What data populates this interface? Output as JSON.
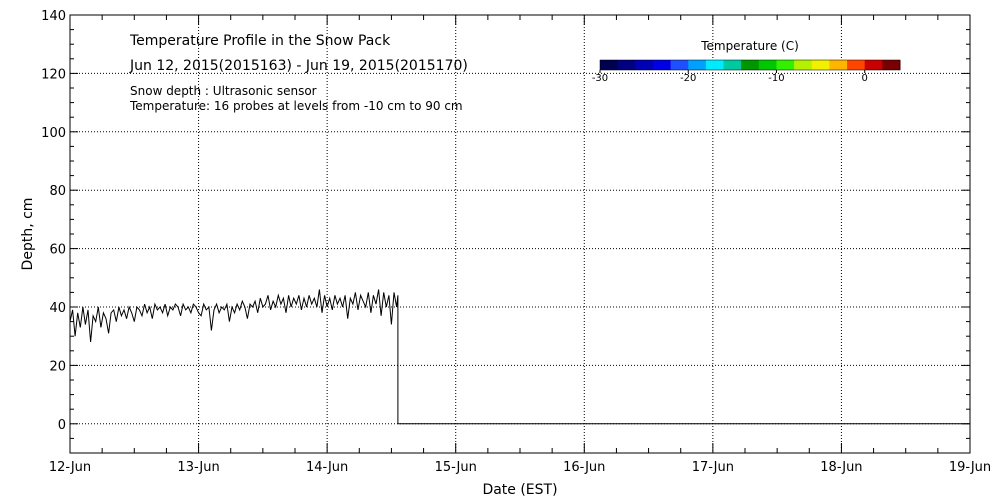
{
  "chart_data": {
    "type": "line",
    "title": "Temperature Profile in the Snow Pack",
    "subtitle": "Jun 12, 2015(2015163) - Jun 19, 2015(2015170)",
    "annotations": [
      "Snow depth : Ultrasonic sensor",
      "Temperature: 16 probes at levels from -10 cm to 90 cm"
    ],
    "xlabel": "Date (EST)",
    "ylabel": "Depth, cm",
    "x_ticks": [
      "12-Jun",
      "13-Jun",
      "14-Jun",
      "15-Jun",
      "16-Jun",
      "17-Jun",
      "18-Jun",
      "19-Jun"
    ],
    "xlim": [
      0,
      7
    ],
    "ylim": [
      -10,
      140
    ],
    "y_ticks": [
      0,
      20,
      40,
      60,
      80,
      100,
      120,
      140
    ],
    "y_tick_labels": [
      "0",
      "20",
      "40",
      "60",
      "80",
      "100",
      "120",
      "140"
    ],
    "grid": true,
    "colorbar": {
      "title": "Temperature (C)",
      "range": [
        -30,
        4
      ],
      "tick_values": [
        -30,
        -20,
        -10,
        0
      ],
      "tick_labels": [
        "-30",
        "-20",
        "-10",
        "0"
      ],
      "colors": [
        "#000050",
        "#000080",
        "#0000b4",
        "#0000e6",
        "#1e50ff",
        "#00a0ff",
        "#00ebff",
        "#00c8a0",
        "#009600",
        "#00c800",
        "#32f000",
        "#b4f000",
        "#f0f000",
        "#ffb400",
        "#ff4600",
        "#c80000",
        "#780000"
      ]
    },
    "series": [
      {
        "values": [
          [
            0.0,
            35
          ],
          [
            0.02,
            39
          ],
          [
            0.04,
            30
          ],
          [
            0.06,
            38
          ],
          [
            0.08,
            33
          ],
          [
            0.1,
            40
          ],
          [
            0.12,
            34
          ],
          [
            0.14,
            39
          ],
          [
            0.16,
            28
          ],
          [
            0.18,
            37
          ],
          [
            0.2,
            35
          ],
          [
            0.22,
            40
          ],
          [
            0.24,
            33
          ],
          [
            0.26,
            38
          ],
          [
            0.28,
            36
          ],
          [
            0.3,
            31
          ],
          [
            0.32,
            38
          ],
          [
            0.34,
            39
          ],
          [
            0.36,
            35
          ],
          [
            0.38,
            40
          ],
          [
            0.4,
            37
          ],
          [
            0.42,
            39
          ],
          [
            0.44,
            36
          ],
          [
            0.46,
            40
          ],
          [
            0.48,
            38
          ],
          [
            0.5,
            35
          ],
          [
            0.52,
            40
          ],
          [
            0.54,
            39
          ],
          [
            0.56,
            37
          ],
          [
            0.58,
            41
          ],
          [
            0.6,
            38
          ],
          [
            0.62,
            40
          ],
          [
            0.64,
            36
          ],
          [
            0.66,
            41
          ],
          [
            0.68,
            39
          ],
          [
            0.7,
            40
          ],
          [
            0.72,
            38
          ],
          [
            0.74,
            41
          ],
          [
            0.76,
            37
          ],
          [
            0.78,
            40
          ],
          [
            0.8,
            39
          ],
          [
            0.82,
            41
          ],
          [
            0.84,
            40
          ],
          [
            0.86,
            37
          ],
          [
            0.88,
            41
          ],
          [
            0.9,
            39
          ],
          [
            0.92,
            40
          ],
          [
            0.94,
            38
          ],
          [
            0.96,
            41
          ],
          [
            0.98,
            40
          ],
          [
            1.0,
            38
          ],
          [
            1.02,
            37
          ],
          [
            1.04,
            41
          ],
          [
            1.06,
            39
          ],
          [
            1.08,
            40
          ],
          [
            1.1,
            32
          ],
          [
            1.12,
            39
          ],
          [
            1.14,
            41
          ],
          [
            1.16,
            38
          ],
          [
            1.18,
            40
          ],
          [
            1.2,
            39
          ],
          [
            1.22,
            41
          ],
          [
            1.24,
            35
          ],
          [
            1.26,
            40
          ],
          [
            1.28,
            38
          ],
          [
            1.3,
            41
          ],
          [
            1.32,
            39
          ],
          [
            1.34,
            42
          ],
          [
            1.36,
            40
          ],
          [
            1.38,
            36
          ],
          [
            1.4,
            41
          ],
          [
            1.42,
            40
          ],
          [
            1.44,
            42
          ],
          [
            1.46,
            38
          ],
          [
            1.48,
            43
          ],
          [
            1.5,
            40
          ],
          [
            1.52,
            41
          ],
          [
            1.54,
            44
          ],
          [
            1.56,
            39
          ],
          [
            1.58,
            42
          ],
          [
            1.6,
            40
          ],
          [
            1.62,
            44
          ],
          [
            1.64,
            41
          ],
          [
            1.66,
            43
          ],
          [
            1.68,
            38
          ],
          [
            1.7,
            44
          ],
          [
            1.72,
            40
          ],
          [
            1.74,
            43
          ],
          [
            1.76,
            41
          ],
          [
            1.78,
            44
          ],
          [
            1.8,
            39
          ],
          [
            1.82,
            43
          ],
          [
            1.84,
            40
          ],
          [
            1.86,
            44
          ],
          [
            1.88,
            41
          ],
          [
            1.9,
            43
          ],
          [
            1.92,
            40
          ],
          [
            1.94,
            46
          ],
          [
            1.96,
            38
          ],
          [
            1.98,
            44
          ],
          [
            2.0,
            40
          ],
          [
            2.02,
            43
          ],
          [
            2.04,
            39
          ],
          [
            2.06,
            44
          ],
          [
            2.08,
            41
          ],
          [
            2.1,
            43
          ],
          [
            2.12,
            40
          ],
          [
            2.14,
            44
          ],
          [
            2.16,
            36
          ],
          [
            2.18,
            43
          ],
          [
            2.2,
            41
          ],
          [
            2.22,
            45
          ],
          [
            2.24,
            39
          ],
          [
            2.26,
            44
          ],
          [
            2.28,
            42
          ],
          [
            2.3,
            40
          ],
          [
            2.32,
            45
          ],
          [
            2.34,
            38
          ],
          [
            2.36,
            44
          ],
          [
            2.38,
            41
          ],
          [
            2.4,
            46
          ],
          [
            2.42,
            37
          ],
          [
            2.44,
            45
          ],
          [
            2.46,
            40
          ],
          [
            2.48,
            44
          ],
          [
            2.5,
            34
          ],
          [
            2.52,
            45
          ],
          [
            2.54,
            40
          ],
          [
            2.55,
            44
          ],
          [
            2.55,
            0
          ],
          [
            2.7,
            0
          ],
          [
            3.0,
            0
          ],
          [
            4.0,
            0
          ],
          [
            5.0,
            0
          ],
          [
            6.0,
            0
          ],
          [
            7.0,
            0
          ]
        ]
      }
    ]
  }
}
